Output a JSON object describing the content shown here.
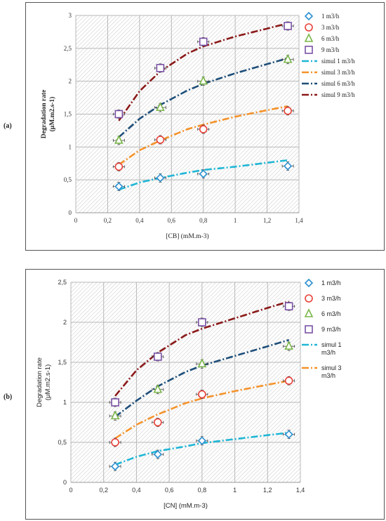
{
  "panel_labels": [
    "(a)",
    "(b)"
  ],
  "colors": {
    "q1": "#2a8fd0",
    "q3": "#e8413a",
    "q6": "#7ab648",
    "q9": "#7a52a6",
    "s1": "#1fb6d5",
    "s3": "#f4922a",
    "s6": "#1e4e79",
    "s9": "#8b1a1a"
  },
  "chart_data": [
    {
      "type": "scatter",
      "xlabel": "[CB] (mM.m-3)",
      "ylabel": "Degradation rate (μM.m2.s-1)",
      "xlim": [
        0,
        1.4
      ],
      "ylim": [
        0,
        3
      ],
      "xticks": [
        "0",
        "0,2",
        "0,4",
        "0,6",
        "0,8",
        "1",
        "1,2",
        "1,4"
      ],
      "yticks": [
        "0",
        "0,5",
        "1",
        "1,5",
        "2",
        "2,5",
        "3"
      ],
      "grid": true,
      "legend_position": "right",
      "series": [
        {
          "name": "1 m3/h",
          "marker": "diamond",
          "color": "q1",
          "x": [
            0.27,
            0.53,
            0.8,
            1.33
          ],
          "y": [
            0.4,
            0.53,
            0.59,
            0.71
          ]
        },
        {
          "name": "3 m3/h",
          "marker": "circle",
          "color": "q3",
          "x": [
            0.27,
            0.53,
            0.8,
            1.33
          ],
          "y": [
            0.7,
            1.11,
            1.27,
            1.55
          ]
        },
        {
          "name": "6 m3/h",
          "marker": "triangle",
          "color": "q6",
          "x": [
            0.27,
            0.53,
            0.8,
            1.33
          ],
          "y": [
            1.1,
            1.6,
            2.0,
            2.33
          ]
        },
        {
          "name": "9 m3/h",
          "marker": "square",
          "color": "q9",
          "x": [
            0.27,
            0.53,
            0.8,
            1.33
          ],
          "y": [
            1.5,
            2.2,
            2.6,
            2.84
          ]
        },
        {
          "name": "simul 1 m3/h",
          "line": true,
          "color": "s1",
          "x": [
            0.27,
            0.4,
            0.53,
            0.7,
            0.8,
            1.0,
            1.2,
            1.33
          ],
          "y": [
            0.35,
            0.46,
            0.53,
            0.61,
            0.65,
            0.7,
            0.76,
            0.8
          ]
        },
        {
          "name": "simul 3 m3/h",
          "line": true,
          "color": "s3",
          "x": [
            0.27,
            0.4,
            0.53,
            0.7,
            0.8,
            1.0,
            1.2,
            1.33
          ],
          "y": [
            0.73,
            0.95,
            1.1,
            1.27,
            1.34,
            1.46,
            1.56,
            1.62
          ]
        },
        {
          "name": "simul 6 m3/h",
          "line": true,
          "color": "s6",
          "x": [
            0.27,
            0.4,
            0.53,
            0.7,
            0.8,
            1.0,
            1.2,
            1.33
          ],
          "y": [
            1.15,
            1.43,
            1.64,
            1.86,
            1.96,
            2.12,
            2.26,
            2.35
          ]
        },
        {
          "name": "simul 9 m3/h",
          "line": true,
          "color": "s9",
          "x": [
            0.27,
            0.4,
            0.53,
            0.7,
            0.8,
            1.0,
            1.2,
            1.33
          ],
          "y": [
            1.4,
            1.85,
            2.15,
            2.42,
            2.53,
            2.68,
            2.8,
            2.88
          ]
        }
      ]
    },
    {
      "type": "scatter",
      "xlabel": "[CN] (mM.m-3)",
      "ylabel": "Degradation rate (μM.m2.s-1)",
      "xlim": [
        0,
        1.4
      ],
      "ylim": [
        0,
        2.5
      ],
      "xticks": [
        "0",
        "0,2",
        "0,4",
        "0,6",
        "0,8",
        "1",
        "1,2",
        "1,4"
      ],
      "yticks": [
        "0",
        "0,5",
        "1",
        "1,5",
        "2",
        "2,5"
      ],
      "grid": true,
      "legend_position": "right",
      "series": [
        {
          "name": "1 m3/h",
          "marker": "diamond",
          "color": "q1",
          "x": [
            0.27,
            0.53,
            0.8,
            1.33
          ],
          "y": [
            0.2,
            0.35,
            0.52,
            0.6
          ]
        },
        {
          "name": "3 m3/h",
          "marker": "circle",
          "color": "q3",
          "x": [
            0.27,
            0.53,
            0.8,
            1.33
          ],
          "y": [
            0.5,
            0.75,
            1.1,
            1.27
          ]
        },
        {
          "name": "6 m3/h",
          "marker": "triangle",
          "color": "q6",
          "x": [
            0.27,
            0.53,
            0.8,
            1.33
          ],
          "y": [
            0.83,
            1.16,
            1.48,
            1.7
          ]
        },
        {
          "name": "9 m3/h",
          "marker": "square",
          "color": "q9",
          "x": [
            0.27,
            0.53,
            0.8,
            1.33
          ],
          "y": [
            1.0,
            1.57,
            2.0,
            2.2
          ]
        },
        {
          "name": "simul 1 m3/h",
          "line": true,
          "color": "s1",
          "x": [
            0.27,
            0.4,
            0.53,
            0.7,
            0.8,
            1.0,
            1.2,
            1.33
          ],
          "y": [
            0.22,
            0.32,
            0.39,
            0.45,
            0.49,
            0.54,
            0.59,
            0.62
          ]
        },
        {
          "name": "simul 3 m3/h",
          "line": true,
          "color": "s3",
          "x": [
            0.27,
            0.4,
            0.53,
            0.7,
            0.8,
            1.0,
            1.2,
            1.33
          ],
          "y": [
            0.55,
            0.72,
            0.85,
            0.99,
            1.05,
            1.14,
            1.22,
            1.27
          ]
        },
        {
          "name": "",
          "line": true,
          "color": "s6",
          "x": [
            0.27,
            0.4,
            0.53,
            0.7,
            0.8,
            1.0,
            1.2,
            1.33
          ],
          "y": [
            0.82,
            1.02,
            1.2,
            1.38,
            1.46,
            1.58,
            1.7,
            1.78
          ]
        },
        {
          "name": "",
          "line": true,
          "color": "s9",
          "x": [
            0.27,
            0.4,
            0.53,
            0.7,
            0.8,
            1.0,
            1.2,
            1.33
          ],
          "y": [
            1.08,
            1.4,
            1.62,
            1.84,
            1.92,
            2.05,
            2.18,
            2.26
          ]
        }
      ]
    }
  ]
}
